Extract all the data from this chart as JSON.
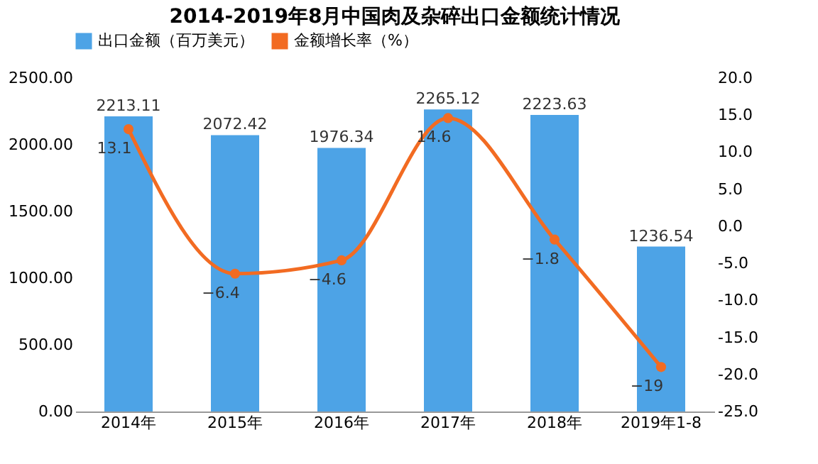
{
  "chart_data": {
    "type": "bar",
    "title": "2014-2019年8月中国肉及杂碎出口金额统计情况",
    "categories": [
      "2014年",
      "2015年",
      "2016年",
      "2017年",
      "2018年",
      "2019年1-8"
    ],
    "series": [
      {
        "name": "出口金额（百万美元）",
        "color": "#4da3e6",
        "values": [
          2213.11,
          2072.42,
          1976.34,
          2265.12,
          2223.63,
          1236.54
        ]
      },
      {
        "name": "金额增长率（%）",
        "type": "line",
        "axis": "y2",
        "color": "#f26b22",
        "values": [
          13.1,
          -6.4,
          -4.6,
          14.6,
          -1.8,
          -19
        ]
      }
    ],
    "ylim": [
      0,
      2500
    ],
    "yticks": [
      {
        "value": 0,
        "label": "0.00"
      },
      {
        "value": 500,
        "label": "500.00"
      },
      {
        "value": 1000,
        "label": "1000.00"
      },
      {
        "value": 1500,
        "label": "1500.00"
      },
      {
        "value": 2000,
        "label": "2000.00"
      },
      {
        "value": 2500,
        "label": "2500.00"
      }
    ],
    "y2lim": [
      -25,
      20
    ],
    "y2ticks": [
      {
        "value": -25,
        "label": "-25.0"
      },
      {
        "value": -20,
        "label": "-20.0"
      },
      {
        "value": -15,
        "label": "-15.0"
      },
      {
        "value": -10,
        "label": "-10.0"
      },
      {
        "value": -5,
        "label": "-5.0"
      },
      {
        "value": 0,
        "label": "0.0"
      },
      {
        "value": 5,
        "label": "5.0"
      },
      {
        "value": 10,
        "label": "10.0"
      },
      {
        "value": 15,
        "label": "15.0"
      },
      {
        "value": 20,
        "label": "20.0"
      }
    ],
    "data_labels": true,
    "legend": "top",
    "grid": false,
    "marker": "circle",
    "line_style": "solid"
  }
}
